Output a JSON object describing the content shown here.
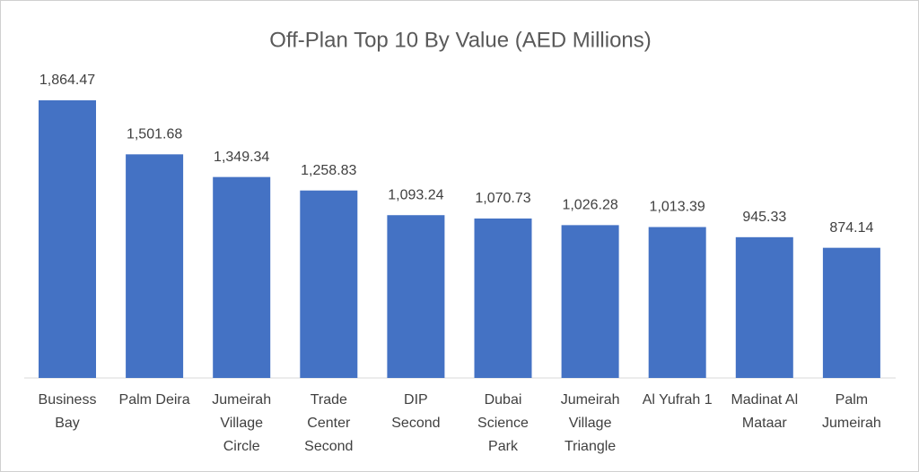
{
  "chart_data": {
    "type": "bar",
    "title": "Off-Plan Top 10 By Value (AED Millions)",
    "categories": [
      "Business Bay",
      "Palm Deira",
      "Jumeirah Village Circle",
      "Trade Center Second",
      "DIP Second",
      "Dubai Science Park",
      "Jumeirah Village Triangle",
      "Al Yufrah 1",
      "Madinat Al Mataar",
      "Palm Jumeirah"
    ],
    "values": [
      1864.47,
      1501.68,
      1349.34,
      1258.83,
      1093.24,
      1070.73,
      1026.28,
      1013.39,
      945.33,
      874.14
    ],
    "value_labels": [
      "1,864.47",
      "1,501.68",
      "1,349.34",
      "1,258.83",
      "1,093.24",
      "1,070.73",
      "1,026.28",
      "1,013.39",
      "945.33",
      "874.14"
    ],
    "color": "#4472c4"
  }
}
